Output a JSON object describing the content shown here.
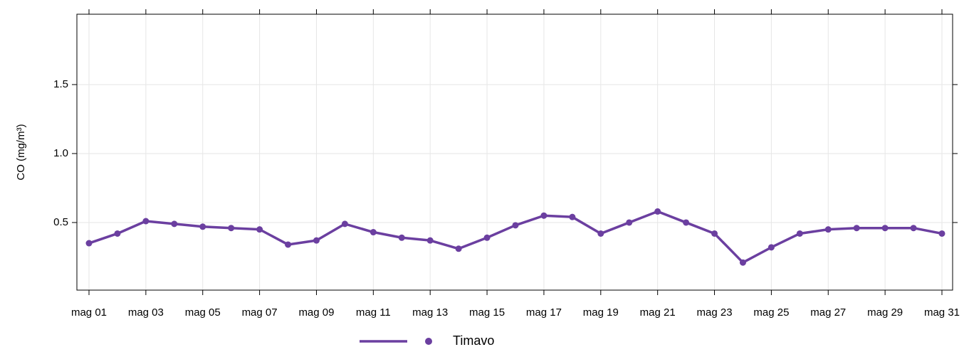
{
  "chart_data": {
    "type": "line",
    "ylabel": "CO (mg/m³)",
    "categories": [
      "mag 01",
      null,
      "mag 03",
      null,
      "mag 05",
      null,
      "mag 07",
      null,
      "mag 09",
      null,
      "mag 11",
      null,
      "mag 13",
      null,
      "mag 15",
      null,
      "mag 17",
      null,
      "mag 19",
      null,
      "mag 21",
      null,
      "mag 23",
      null,
      "mag 25",
      null,
      "mag 27",
      null,
      "mag 29",
      null,
      "mag 31"
    ],
    "series": [
      {
        "name": "Timavo",
        "color": "#6b3fa0",
        "values": [
          0.35,
          0.42,
          0.51,
          0.49,
          0.47,
          0.46,
          0.45,
          0.34,
          0.37,
          0.49,
          0.43,
          0.39,
          0.37,
          0.31,
          0.39,
          0.48,
          0.55,
          0.54,
          0.42,
          0.5,
          0.58,
          0.5,
          0.42,
          0.21,
          0.32,
          0.42,
          0.45,
          0.46,
          0.46,
          0.46,
          0.42
        ]
      }
    ],
    "ylim": [
      0.01,
      2.01
    ],
    "yticks": [
      0.5,
      {
        "value": 1,
        "label": "1.0"
      },
      1.5
    ],
    "grid": true,
    "legend": "bottom"
  }
}
